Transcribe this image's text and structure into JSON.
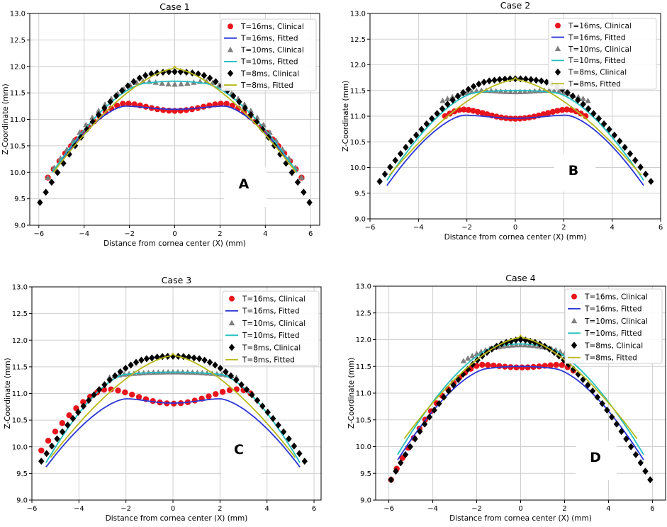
{
  "figure_labels": {
    "x_label": "Distance from cornea center (X) (mm)",
    "y_label": "Z-Coordinate (mm)"
  },
  "legend_labels": [
    "T=16ms, Clinical",
    "T=16ms, Fitted",
    "T=10ms, Clinical",
    "T=10ms, Fitted",
    "T=8ms, Clinical",
    "T=8ms, Fitted"
  ],
  "colors": {
    "clinical_16": "#e8141c",
    "fitted_16": "#2a35d6",
    "clinical_10": "#7f7f7f",
    "fitted_10": "#1fbfbf",
    "clinical_8": "#000000",
    "fitted_8": "#b8b81a"
  },
  "chart_data": [
    {
      "type": "scatter",
      "title": "Case 1",
      "panel_letter": "A",
      "xlabel": "Distance from cornea center (X) (mm)",
      "ylabel": "Z-Coordinate (mm)",
      "xlim": [
        -6.4,
        6.4
      ],
      "ylim": [
        9.0,
        13.0
      ],
      "xticks": [
        -6,
        -4,
        -2,
        0,
        2,
        4,
        6
      ],
      "yticks": [
        9.0,
        9.5,
        10.0,
        10.5,
        11.0,
        11.5,
        12.0,
        12.5,
        13.0
      ],
      "x_tick_labels": [
        "−6",
        "−4",
        "−2",
        "0",
        "2",
        "4",
        "6"
      ],
      "y_tick_labels": [
        "9.0",
        "9.5",
        "10.0",
        "10.5",
        "11.0",
        "11.5",
        "12.0",
        "12.5",
        "13.0"
      ],
      "legend_position": "top-right",
      "series": [
        {
          "name": "T=16ms, Clinical",
          "kind": "dots",
          "x_range": [
            -5.6,
            5.6
          ],
          "count": 45,
          "shape": {
            "apex": 11.3,
            "center_dip": 0.14,
            "peak_x": 2.2,
            "edge": 9.9
          }
        },
        {
          "name": "T=16ms, Fitted",
          "kind": "line",
          "x_range": [
            -5.4,
            5.4
          ],
          "shape": {
            "apex": 11.25,
            "center_dip": 0.06,
            "peak_x": 2.2,
            "edge": 10.0
          }
        },
        {
          "name": "T=10ms, Clinical",
          "kind": "triangles",
          "x_range": [
            -5.6,
            5.6
          ],
          "count": 41,
          "shape": {
            "apex": 11.72,
            "center_dip": 0.06,
            "peak_x": 1.4,
            "edge": 9.9
          }
        },
        {
          "name": "T=10ms, Fitted",
          "kind": "line",
          "x_range": [
            -5.4,
            5.4
          ],
          "shape": {
            "apex": 11.72,
            "center_dip": 0.0,
            "peak_x": 1.3,
            "edge": 10.0
          }
        },
        {
          "name": "T=8ms, Clinical",
          "kind": "diamonds",
          "x_range": [
            -5.95,
            5.95
          ],
          "count": 47,
          "shape": {
            "apex": 11.9,
            "center_dip": 0.0,
            "peak_x": 1.0,
            "edge": 9.43
          }
        },
        {
          "name": "T=8ms, Fitted",
          "kind": "line",
          "x_range": [
            -5.35,
            5.35
          ],
          "shape": {
            "apex": 12.0,
            "center_dip": 0.0,
            "peak_x": 0.0,
            "edge": 10.0
          }
        }
      ]
    },
    {
      "type": "scatter",
      "title": "Case 2",
      "panel_letter": "B",
      "xlabel": "Distance from cornea center (X) (mm)",
      "ylabel": "Z-Coordinate (mm)",
      "xlim": [
        -6.0,
        6.0
      ],
      "ylim": [
        9.0,
        13.0
      ],
      "xticks": [
        -6,
        -4,
        -2,
        0,
        2,
        4,
        6
      ],
      "yticks": [
        9.0,
        9.5,
        10.0,
        10.5,
        11.0,
        11.5,
        12.0,
        12.5,
        13.0
      ],
      "x_tick_labels": [
        "−6",
        "−4",
        "−2",
        "0",
        "2",
        "4",
        "6"
      ],
      "y_tick_labels": [
        "9.0",
        "9.5",
        "10.0",
        "10.5",
        "11.0",
        "11.5",
        "12.0",
        "12.5",
        "13.0"
      ],
      "legend_position": "top-right",
      "series": [
        {
          "name": "T=16ms, Clinical",
          "kind": "dots",
          "x_range": [
            -2.9,
            2.9
          ],
          "count": 31,
          "shape": {
            "apex": 11.13,
            "center_dip": 0.18,
            "peak_x": 2.2,
            "edge": 11.0
          }
        },
        {
          "name": "T=16ms, Fitted",
          "kind": "line",
          "x_range": [
            -5.3,
            5.3
          ],
          "shape": {
            "apex": 11.02,
            "center_dip": 0.06,
            "peak_x": 2.1,
            "edge": 9.65
          }
        },
        {
          "name": "T=10ms, Clinical",
          "kind": "triangles",
          "x_range": [
            -3.0,
            3.0
          ],
          "count": 31,
          "shape": {
            "apex": 11.5,
            "center_dip": 0.03,
            "peak_x": 1.4,
            "edge": 11.3
          }
        },
        {
          "name": "T=10ms, Fitted",
          "kind": "line",
          "x_range": [
            -5.3,
            5.3
          ],
          "shape": {
            "apex": 11.5,
            "center_dip": 0.0,
            "peak_x": 1.6,
            "edge": 9.75
          }
        },
        {
          "name": "T=8ms, Clinical",
          "kind": "diamonds",
          "x_range": [
            -5.6,
            5.6
          ],
          "count": 53,
          "shape": {
            "apex": 11.73,
            "center_dip": 0.0,
            "peak_x": 1.0,
            "edge": 9.73
          }
        },
        {
          "name": "T=8ms, Fitted",
          "kind": "line",
          "x_range": [
            -5.2,
            5.2
          ],
          "shape": {
            "apex": 11.75,
            "center_dip": 0.0,
            "peak_x": 0.0,
            "edge": 9.85
          }
        }
      ]
    },
    {
      "type": "scatter",
      "title": "Case 3",
      "panel_letter": "C",
      "xlabel": "Distance from cornea center (X) (mm)",
      "ylabel": "Z-Coordinate (mm)",
      "xlim": [
        -6.0,
        6.3
      ],
      "ylim": [
        9.0,
        13.0
      ],
      "xticks": [
        -6,
        -4,
        -2,
        0,
        2,
        4,
        6
      ],
      "yticks": [
        9.0,
        9.5,
        10.0,
        10.5,
        11.0,
        11.5,
        12.0,
        12.5,
        13.0
      ],
      "x_tick_labels": [
        "−6",
        "−4",
        "−2",
        "0",
        "2",
        "4",
        "6"
      ],
      "y_tick_labels": [
        "9.0",
        "9.5",
        "10.0",
        "10.5",
        "11.0",
        "11.5",
        "12.0",
        "12.5",
        "13.0"
      ],
      "legend_position": "top-right",
      "series": [
        {
          "name": "T=16ms, Clinical",
          "kind": "dots",
          "x_range": [
            -5.6,
            3.3
          ],
          "count": 31,
          "shape": {
            "apex": 11.08,
            "center_dip": 0.27,
            "peak_x": 2.8,
            "edge": 9.93
          }
        },
        {
          "name": "T=16ms, Fitted",
          "kind": "line",
          "x_range": [
            -5.4,
            5.4
          ],
          "shape": {
            "apex": 10.9,
            "center_dip": 0.08,
            "peak_x": 2.0,
            "edge": 9.62
          }
        },
        {
          "name": "T=10ms, Clinical",
          "kind": "triangles",
          "x_range": [
            -2.7,
            2.7
          ],
          "count": 27,
          "shape": {
            "apex": 11.4,
            "center_dip": 0.0,
            "peak_x": 2.0,
            "edge": 11.3
          }
        },
        {
          "name": "T=10ms, Fitted",
          "kind": "line",
          "x_range": [
            -5.4,
            5.4
          ],
          "shape": {
            "apex": 11.4,
            "center_dip": 0.0,
            "peak_x": 2.0,
            "edge": 9.7
          }
        },
        {
          "name": "T=8ms, Clinical",
          "kind": "diamonds",
          "x_range": [
            -5.6,
            5.6
          ],
          "count": 51,
          "shape": {
            "apex": 11.7,
            "center_dip": 0.0,
            "peak_x": 1.0,
            "edge": 9.73
          }
        },
        {
          "name": "T=8ms, Fitted",
          "kind": "line",
          "x_range": [
            -5.2,
            5.2
          ],
          "shape": {
            "apex": 11.75,
            "center_dip": 0.0,
            "peak_x": 0.0,
            "edge": 9.8
          }
        }
      ]
    },
    {
      "type": "scatter",
      "title": "Case 4",
      "panel_letter": "D",
      "xlabel": "Distance from cornea center (X) (mm)",
      "ylabel": "Z-Coordinate (mm)",
      "xlim": [
        -6.6,
        6.6
      ],
      "ylim": [
        9.0,
        13.0
      ],
      "xticks": [
        -6,
        -4,
        -2,
        0,
        2,
        4,
        6
      ],
      "yticks": [
        9.0,
        9.5,
        10.0,
        10.5,
        11.0,
        11.5,
        12.0,
        12.5,
        13.0
      ],
      "x_tick_labels": [
        "−6",
        "−4",
        "−2",
        "0",
        "2",
        "4",
        "6"
      ],
      "y_tick_labels": [
        "9.0",
        "9.5",
        "10.0",
        "10.5",
        "11.0",
        "11.5",
        "12.0",
        "12.5",
        "13.0"
      ],
      "legend_position": "top-right",
      "series": [
        {
          "name": "T=16ms, Clinical",
          "kind": "dots",
          "x_range": [
            -5.9,
            2.4
          ],
          "count": 33,
          "shape": {
            "apex": 11.53,
            "center_dip": 0.05,
            "peak_x": 1.8,
            "edge": 9.38
          }
        },
        {
          "name": "T=16ms, Fitted",
          "kind": "line",
          "x_range": [
            -5.6,
            5.6
          ],
          "shape": {
            "apex": 11.5,
            "center_dip": 0.0,
            "peak_x": 1.5,
            "edge": 9.75
          }
        },
        {
          "name": "T=10ms, Clinical",
          "kind": "triangles",
          "x_range": [
            -2.6,
            2.6
          ],
          "count": 27,
          "shape": {
            "apex": 11.9,
            "center_dip": 0.0,
            "peak_x": 1.0,
            "edge": 11.6
          }
        },
        {
          "name": "T=10ms, Fitted",
          "kind": "line",
          "x_range": [
            -5.6,
            5.6
          ],
          "shape": {
            "apex": 11.92,
            "center_dip": 0.0,
            "peak_x": 1.0,
            "edge": 9.85
          }
        },
        {
          "name": "T=8ms, Clinical",
          "kind": "diamonds",
          "x_range": [
            -5.9,
            5.9
          ],
          "count": 55,
          "shape": {
            "apex": 12.0,
            "center_dip": 0.0,
            "peak_x": 0.5,
            "edge": 9.38
          }
        },
        {
          "name": "T=8ms, Fitted",
          "kind": "line",
          "x_range": [
            -5.3,
            5.3
          ],
          "shape": {
            "apex": 12.08,
            "center_dip": 0.0,
            "peak_x": 0.0,
            "edge": 10.15
          }
        }
      ]
    }
  ]
}
